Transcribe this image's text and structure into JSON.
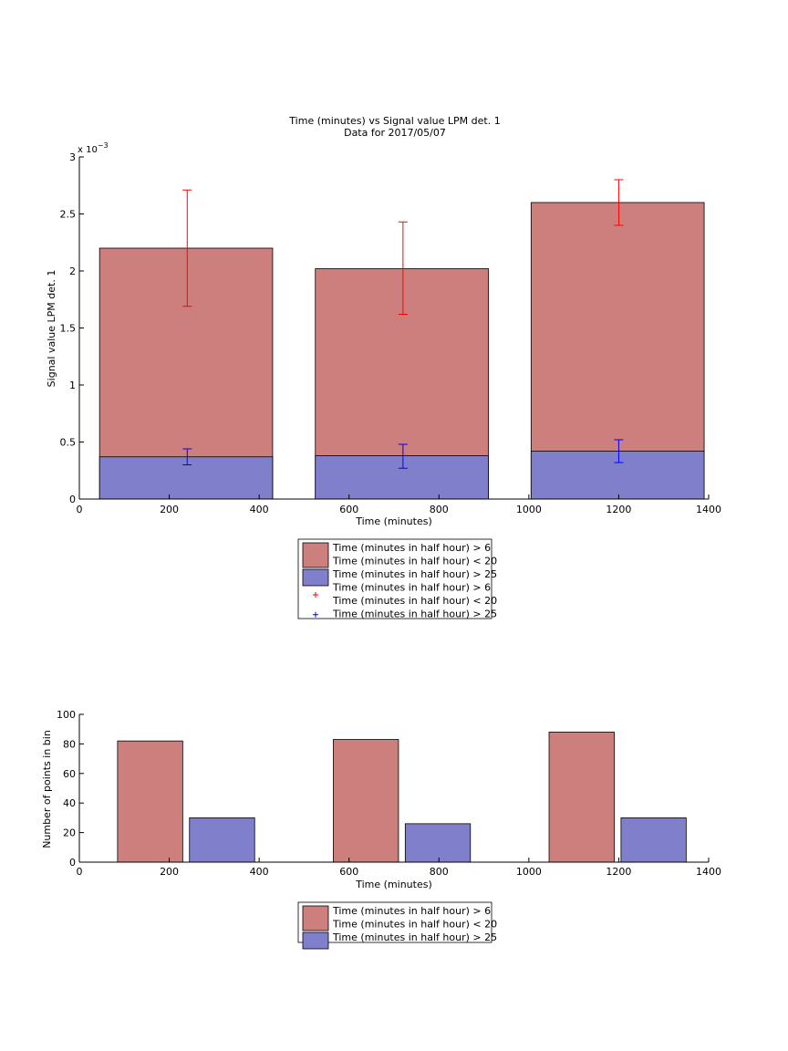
{
  "chart_data": [
    {
      "type": "bar",
      "title": "Time (minutes) vs Signal value LPM det. 1",
      "subtitle": "Data for 2017/05/07",
      "xlabel": "Time (minutes)",
      "ylabel": "Signal value LPM det. 1",
      "y_multiplier_label": "x 10",
      "y_multiplier_exp": "−3",
      "xlim": [
        0,
        1400
      ],
      "ylim": [
        0,
        3
      ],
      "xticks": [
        "0",
        "200",
        "400",
        "600",
        "800",
        "1000",
        "1200",
        "1400"
      ],
      "yticks": [
        "0",
        "0.5",
        "1",
        "1.5",
        "2",
        "2.5",
        "3"
      ],
      "series": [
        {
          "name": "Time (minutes in half hour) > 6\nTime (minutes in half hour) < 20",
          "color": "#cc7f7d",
          "bars": [
            {
              "x0": 45,
              "x1": 430,
              "value": 2.2
            },
            {
              "x0": 525,
              "x1": 910,
              "value": 2.02
            },
            {
              "x0": 1005,
              "x1": 1390,
              "value": 2.6
            }
          ]
        },
        {
          "name": "Time (minutes in half hour) > 25",
          "color": "#7f7fcc",
          "bars": [
            {
              "x0": 45,
              "x1": 430,
              "value": 0.37
            },
            {
              "x0": 525,
              "x1": 910,
              "value": 0.38
            },
            {
              "x0": 1005,
              "x1": 1390,
              "value": 0.42
            }
          ]
        }
      ],
      "errorbars": [
        {
          "name": "Time (minutes in half hour) > 6\nTime (minutes in half hour) < 20",
          "color": "#ff0000",
          "points": [
            {
              "x": 240,
              "low": 1.69,
              "high": 2.71
            },
            {
              "x": 720,
              "low": 1.62,
              "high": 2.43
            },
            {
              "x": 1200,
              "low": 2.4,
              "high": 2.8
            }
          ]
        },
        {
          "name": "Time (minutes in half hour) > 25",
          "color": "#0000ff",
          "points": [
            {
              "x": 240,
              "low": 0.3,
              "high": 0.44
            },
            {
              "x": 720,
              "low": 0.27,
              "high": 0.48
            },
            {
              "x": 1200,
              "low": 0.32,
              "high": 0.52
            }
          ]
        }
      ],
      "legend": {
        "placement": "below",
        "entries": [
          {
            "kind": "patch",
            "color": "#cc7f7d",
            "lines": [
              "Time (minutes in half hour) > 6",
              "Time (minutes in half hour) < 20"
            ]
          },
          {
            "kind": "patch",
            "color": "#7f7fcc",
            "lines": [
              "Time (minutes in half hour) > 25"
            ]
          },
          {
            "kind": "marker",
            "color": "#ff0000",
            "lines": [
              "Time (minutes in half hour) > 6",
              "Time (minutes in half hour) < 20"
            ]
          },
          {
            "kind": "marker",
            "color": "#0000ff",
            "lines": [
              "Time (minutes in half hour) > 25"
            ]
          }
        ]
      }
    },
    {
      "type": "bar",
      "title": "",
      "xlabel": "Time (minutes)",
      "ylabel": "Number of points in bin",
      "xlim": [
        0,
        1400
      ],
      "ylim": [
        0,
        100
      ],
      "xticks": [
        "0",
        "200",
        "400",
        "600",
        "800",
        "1000",
        "1200",
        "1400"
      ],
      "yticks": [
        "0",
        "20",
        "40",
        "60",
        "80",
        "100"
      ],
      "series": [
        {
          "name": "Time (minutes in half hour) > 6\nTime (minutes in half hour) < 20",
          "color": "#cc7f7d",
          "bars": [
            {
              "x0": 85,
              "x1": 230,
              "value": 82
            },
            {
              "x0": 565,
              "x1": 710,
              "value": 83
            },
            {
              "x0": 1045,
              "x1": 1190,
              "value": 88
            }
          ]
        },
        {
          "name": "Time (minutes in half hour) > 25",
          "color": "#7f7fcc",
          "bars": [
            {
              "x0": 245,
              "x1": 390,
              "value": 30
            },
            {
              "x0": 725,
              "x1": 870,
              "value": 26
            },
            {
              "x0": 1205,
              "x1": 1350,
              "value": 30
            }
          ]
        }
      ],
      "legend": {
        "placement": "below",
        "entries": [
          {
            "kind": "patch",
            "color": "#cc7f7d",
            "lines": [
              "Time (minutes in half hour) > 6",
              "Time (minutes in half hour) < 20"
            ]
          },
          {
            "kind": "patch",
            "color": "#7f7fcc",
            "lines": [
              "Time (minutes in half hour) > 25"
            ]
          }
        ]
      }
    }
  ]
}
